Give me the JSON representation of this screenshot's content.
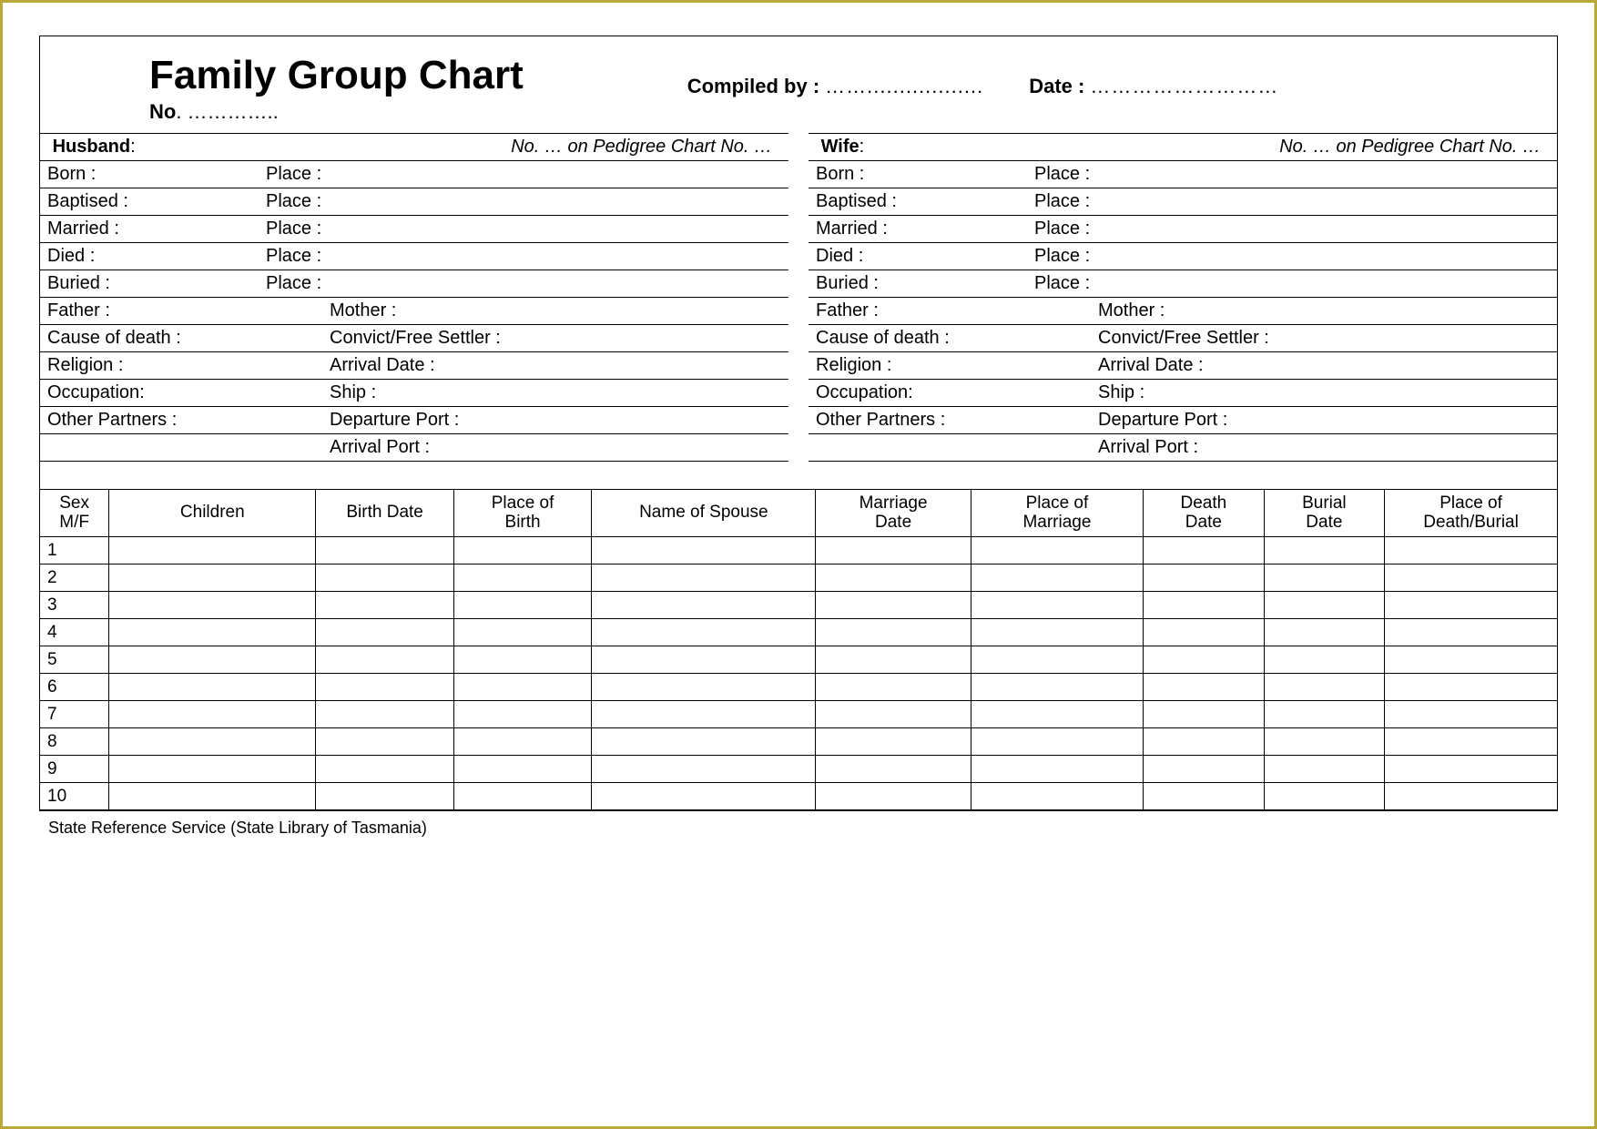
{
  "title": "Family Group Chart",
  "compiled_by_label": "Compiled by :",
  "compiled_by_dots": "……..................",
  "date_label": "Date :",
  "date_dots": "………………………",
  "no_label": "No",
  "no_dots": ". …………..",
  "husband": {
    "header_label": "Husband",
    "pedigree_text": "No. …  on Pedigree Chart No.  …",
    "rows_a": [
      {
        "l1": "Born :",
        "l2": "Place :"
      },
      {
        "l1": "Baptised :",
        "l2": "Place :"
      },
      {
        "l1": "Married :",
        "l2": "Place :"
      },
      {
        "l1": "Died :",
        "l2": "Place :"
      },
      {
        "l1": "Buried :",
        "l2": "Place :"
      }
    ],
    "rows_b": [
      {
        "l1": "Father :",
        "l2": "Mother :"
      },
      {
        "l1": "Cause of death :",
        "l2": "Convict/Free Settler :"
      },
      {
        "l1": "Religion :",
        "l2": "Arrival Date :"
      },
      {
        "l1": "Occupation:",
        "l2": "Ship :"
      },
      {
        "l1": "Other Partners :",
        "l2": "Departure Port :"
      },
      {
        "l1": "",
        "l2": "Arrival Port :"
      }
    ]
  },
  "wife": {
    "header_label": "Wife",
    "pedigree_text": "No. …  on Pedigree Chart No.  …",
    "rows_a": [
      {
        "l1": "Born :",
        "l2": "Place :"
      },
      {
        "l1": "Baptised :",
        "l2": "Place :"
      },
      {
        "l1": "Married :",
        "l2": "Place :"
      },
      {
        "l1": "Died :",
        "l2": "Place :"
      },
      {
        "l1": "Buried :",
        "l2": "Place :"
      }
    ],
    "rows_b": [
      {
        "l1": "Father :",
        "l2": "Mother :"
      },
      {
        "l1": "Cause of death :",
        "l2": "Convict/Free Settler :"
      },
      {
        "l1": "Religion :",
        "l2": "Arrival Date :"
      },
      {
        "l1": "Occupation:",
        "l2": "Ship :"
      },
      {
        "l1": "Other Partners :",
        "l2": "Departure Port :"
      },
      {
        "l1": "",
        "l2": "Arrival Port :"
      }
    ]
  },
  "children_table": {
    "columns": [
      "Sex M/F",
      "Children",
      "Birth Date",
      "Place of Birth",
      "Name of Spouse",
      "Marriage Date",
      "Place of Marriage",
      "Death Date",
      "Burial Date",
      "Place of Death/Burial"
    ],
    "col_widths_pct": [
      4,
      12,
      8,
      8,
      13,
      9,
      10,
      7,
      7,
      10
    ],
    "num_rows": 10
  },
  "footer": "State Reference Service   (State Library of Tasmania)",
  "colors": {
    "outer_border": "#b8a838",
    "line": "#000000",
    "background": "#ffffff",
    "text": "#000000"
  }
}
